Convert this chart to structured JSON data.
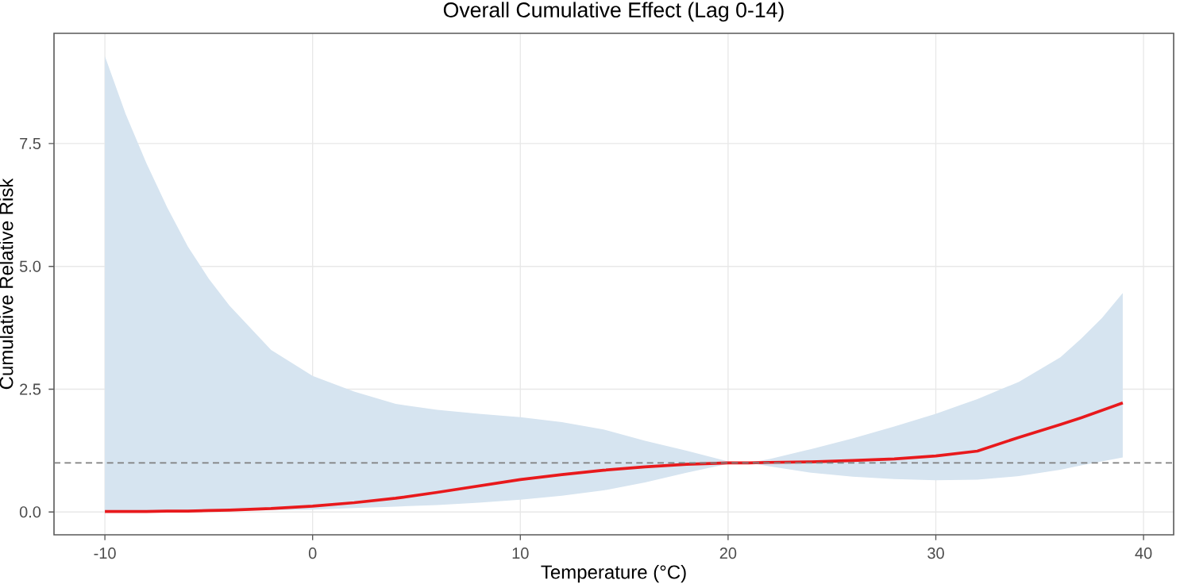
{
  "chart_data": {
    "type": "line",
    "title": "Overall Cumulative Effect (Lag 0-14)",
    "xlabel": "Temperature (°C)",
    "ylabel": "Cumulative Relative Risk",
    "x": [
      -10,
      -9,
      -8,
      -7,
      -6,
      -5,
      -4,
      -2,
      0,
      2,
      4,
      6,
      8,
      10,
      12,
      14,
      16,
      18,
      20,
      21,
      22,
      24,
      26,
      28,
      30,
      32,
      34,
      36,
      37,
      38,
      39
    ],
    "series": [
      {
        "color": "#e8191c",
        "line_style": "solid",
        "values": [
          0.01,
          0.01,
          0.01,
          0.02,
          0.02,
          0.03,
          0.04,
          0.07,
          0.12,
          0.19,
          0.28,
          0.4,
          0.53,
          0.66,
          0.76,
          0.85,
          0.92,
          0.97,
          1.0,
          1.0,
          1.01,
          1.02,
          1.05,
          1.08,
          1.14,
          1.24,
          1.52,
          1.78,
          1.92,
          2.07,
          2.22
        ],
        "lower": [
          0.0,
          0.0,
          0.01,
          0.01,
          0.02,
          0.02,
          0.03,
          0.035,
          0.05,
          0.08,
          0.11,
          0.14,
          0.19,
          0.25,
          0.33,
          0.44,
          0.6,
          0.8,
          0.98,
          1.0,
          0.93,
          0.8,
          0.72,
          0.67,
          0.645,
          0.66,
          0.73,
          0.86,
          0.95,
          1.03,
          1.11
        ],
        "upper": [
          9.28,
          8.1,
          7.1,
          6.2,
          5.4,
          4.75,
          4.2,
          3.3,
          2.77,
          2.45,
          2.2,
          2.08,
          2.0,
          1.93,
          1.83,
          1.68,
          1.45,
          1.25,
          1.03,
          1.0,
          1.08,
          1.28,
          1.5,
          1.74,
          2.0,
          2.3,
          2.65,
          3.15,
          3.53,
          3.95,
          4.46
        ]
      }
    ],
    "xlim": [
      -12.45,
      41.45
    ],
    "ylim": [
      -0.464,
      9.744
    ],
    "xticks": [
      -10,
      0,
      10,
      20,
      30,
      40
    ],
    "yticks": [
      {
        "value": 0,
        "label": "0.0"
      },
      {
        "value": 2.5,
        "label": "2.5"
      },
      {
        "value": 5,
        "label": "5.0"
      },
      {
        "value": 7.5,
        "label": "7.5"
      }
    ],
    "ref_lines": [
      {
        "axis": "y",
        "value": 1,
        "color": "#7f7f7f",
        "line_style": "dashed"
      }
    ],
    "grid": true
  }
}
